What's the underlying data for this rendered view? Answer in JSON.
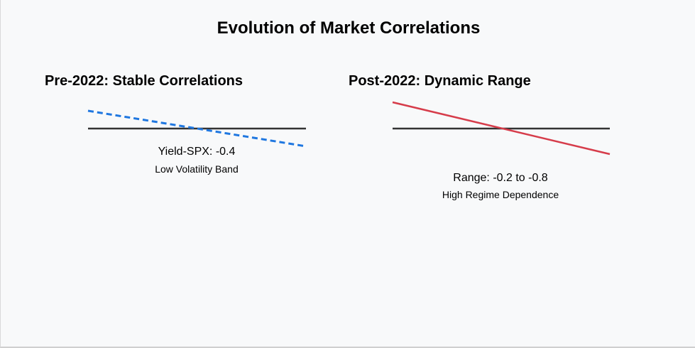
{
  "title": "Evolution of Market Correlations",
  "colors": {
    "baseline": "#333333",
    "pre_line": "#1f77e0",
    "post_line": "#d63c4a"
  },
  "panels": [
    {
      "title": "Pre-2022: Stable Correlations",
      "line_label": "Yield-SPX: -0.4",
      "band_label": "Low Volatility Band",
      "line_style": "dashed"
    },
    {
      "title": "Post-2022: Dynamic Range",
      "line_label": "Range: -0.2 to -0.8",
      "band_label": "High Regime Dependence",
      "line_style": "solid"
    }
  ]
}
